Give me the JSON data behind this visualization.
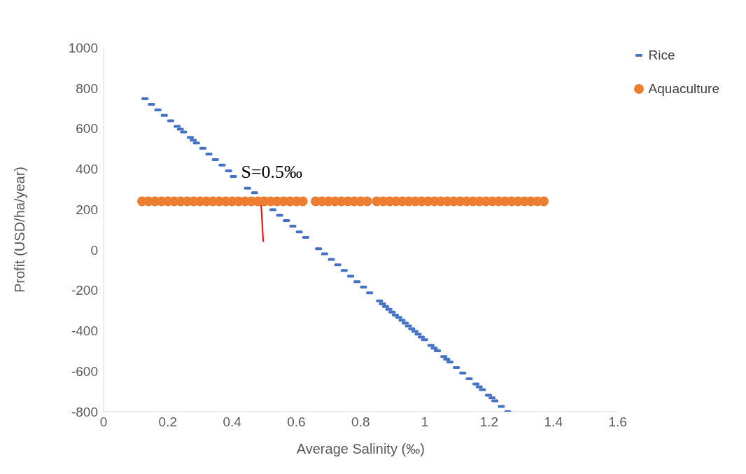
{
  "chart_data": {
    "type": "scatter",
    "xlabel": "Average Salinity (‰)",
    "ylabel": "Profit (USD/ha/year)",
    "xlim": [
      0,
      1.6
    ],
    "xticks": [
      0,
      0.2,
      0.4,
      0.6,
      0.8,
      1,
      1.2,
      1.4,
      1.6
    ],
    "ylim": [
      -800,
      1000
    ],
    "yticks": [
      -800,
      -600,
      -400,
      -200,
      0,
      200,
      400,
      600,
      800,
      1000
    ],
    "grid": false,
    "legend": "top right",
    "annotations": [
      "S=0.5‰"
    ],
    "series": [
      {
        "name": "Rice",
        "color": "#4472c4",
        "x": [
          0.129,
          0.149,
          0.169,
          0.189,
          0.209,
          0.229,
          0.239,
          0.249,
          0.27,
          0.279,
          0.289,
          0.309,
          0.328,
          0.348,
          0.369,
          0.389,
          0.404,
          0.448,
          0.47,
          0.527,
          0.548,
          0.569,
          0.589,
          0.609,
          0.629,
          0.669,
          0.688,
          0.709,
          0.729,
          0.749,
          0.769,
          0.789,
          0.809,
          0.828,
          0.859,
          0.868,
          0.878,
          0.888,
          0.898,
          0.908,
          0.919,
          0.929,
          0.939,
          0.949,
          0.959,
          0.969,
          0.979,
          0.989,
          0.999,
          1.019,
          1.029,
          1.039,
          1.059,
          1.068,
          1.078,
          1.098,
          1.118,
          1.138,
          1.159,
          1.169,
          1.179,
          1.198,
          1.209,
          1.218,
          1.238,
          1.258
        ],
        "values": [
          747,
          720,
          692,
          665,
          638,
          611,
          597,
          583,
          556,
          542,
          528,
          502,
          474,
          446,
          419,
          391,
          363,
          305,
          283,
          199,
          171,
          145,
          117,
          89,
          62,
          6,
          -19,
          -47,
          -74,
          -102,
          -130,
          -157,
          -184,
          -212,
          -252,
          -267,
          -280,
          -294,
          -308,
          -322,
          -334,
          -348,
          -362,
          -376,
          -390,
          -403,
          -417,
          -431,
          -444,
          -472,
          -486,
          -499,
          -527,
          -540,
          -554,
          -582,
          -609,
          -637,
          -663,
          -677,
          -691,
          -719,
          -732,
          -746,
          -774,
          -800
        ]
      },
      {
        "name": "Aquaculture",
        "color": "#ed7d31",
        "marker": "circle",
        "x": [
          0.12,
          0.14,
          0.16,
          0.18,
          0.2,
          0.22,
          0.24,
          0.26,
          0.28,
          0.3,
          0.32,
          0.34,
          0.36,
          0.38,
          0.4,
          0.42,
          0.44,
          0.46,
          0.48,
          0.5,
          0.52,
          0.54,
          0.56,
          0.58,
          0.6,
          0.62,
          0.66,
          0.68,
          0.7,
          0.72,
          0.74,
          0.76,
          0.78,
          0.8,
          0.82,
          0.85,
          0.87,
          0.89,
          0.91,
          0.93,
          0.95,
          0.97,
          0.99,
          1.01,
          1.03,
          1.05,
          1.07,
          1.09,
          1.11,
          1.13,
          1.15,
          1.17,
          1.19,
          1.21,
          1.23,
          1.25,
          1.27,
          1.29,
          1.31,
          1.33,
          1.35,
          1.37
        ],
        "values": [
          240,
          240,
          240,
          240,
          240,
          240,
          240,
          240,
          240,
          240,
          240,
          240,
          240,
          240,
          240,
          240,
          240,
          240,
          240,
          240,
          240,
          240,
          240,
          240,
          240,
          240,
          240,
          240,
          240,
          240,
          240,
          240,
          240,
          240,
          240,
          240,
          240,
          240,
          240,
          240,
          240,
          240,
          240,
          240,
          240,
          240,
          240,
          240,
          240,
          240,
          240,
          240,
          240,
          240,
          240,
          240,
          240,
          240,
          240,
          240,
          240,
          240
        ]
      },
      {
        "type": "line",
        "color": "#ff0000",
        "x": [
          0.489,
          0.497
        ],
        "values": [
          260,
          40
        ]
      }
    ]
  }
}
